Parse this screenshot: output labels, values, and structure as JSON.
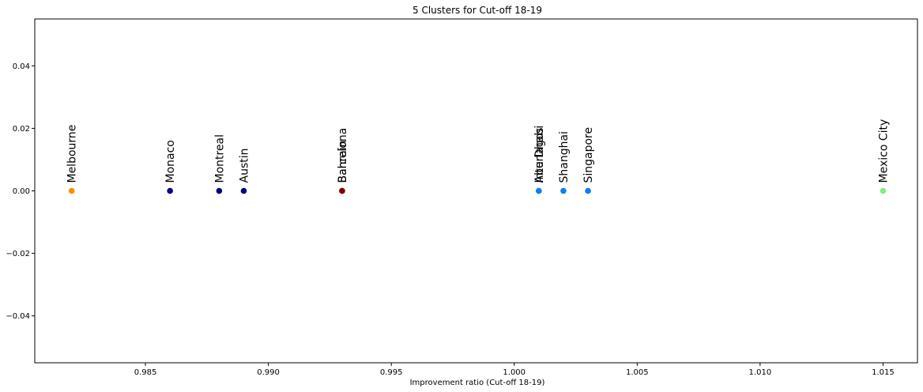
{
  "chart_data": {
    "type": "scatter",
    "title": "5 Clusters for Cut-off 18-19",
    "xlabel": "Improvement ratio (Cut-off 18-19)",
    "ylabel": "",
    "xlim": [
      0.9805,
      1.0164
    ],
    "ylim": [
      -0.055,
      0.055
    ],
    "xticks": [
      0.985,
      0.99,
      0.995,
      1.0,
      1.005,
      1.01,
      1.015
    ],
    "xtick_labels": [
      "0.985",
      "0.990",
      "0.995",
      "1.000",
      "1.005",
      "1.010",
      "1.015"
    ],
    "yticks": [
      -0.04,
      -0.02,
      0.0,
      0.02,
      0.04
    ],
    "ytick_labels": [
      "−0.04",
      "−0.02",
      "0.00",
      "0.02",
      "0.04"
    ],
    "grid": false,
    "points": [
      {
        "label": "Melbourne",
        "x": 0.982,
        "y": 0,
        "color": "#ff8c00"
      },
      {
        "label": "Monaco",
        "x": 0.986,
        "y": 0,
        "color": "#000080"
      },
      {
        "label": "Montreal",
        "x": 0.988,
        "y": 0,
        "color": "#000080"
      },
      {
        "label": "Austin",
        "x": 0.989,
        "y": 0,
        "color": "#000080"
      },
      {
        "label": "Barcelona",
        "x": 0.993,
        "y": 0,
        "color": "#800000"
      },
      {
        "label": "Bahrain",
        "x": 0.993,
        "y": 0,
        "color": "#800000"
      },
      {
        "label": "Abu Dhabi",
        "x": 1.001,
        "y": 0,
        "color": "#0b7ff0"
      },
      {
        "label": "Interlagos",
        "x": 1.001,
        "y": 0,
        "color": "#0b7ff0"
      },
      {
        "label": "Shanghai",
        "x": 1.002,
        "y": 0,
        "color": "#0b7ff0"
      },
      {
        "label": "Singapore",
        "x": 1.003,
        "y": 0,
        "color": "#0b7ff0"
      },
      {
        "label": "Mexico City",
        "x": 1.015,
        "y": 0,
        "color": "#7ef07e"
      }
    ]
  }
}
